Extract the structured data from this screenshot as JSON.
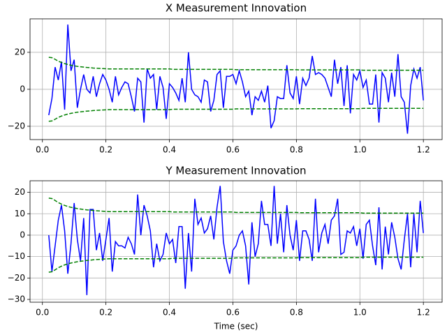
{
  "chart_data": [
    {
      "type": "line",
      "title": "X Measurement Innovation",
      "x": [
        0.02,
        0.03,
        0.04,
        0.05,
        0.06,
        0.07,
        0.08,
        0.09,
        0.1,
        0.11,
        0.12,
        0.13,
        0.14,
        0.15,
        0.16,
        0.17,
        0.18,
        0.19,
        0.2,
        0.21,
        0.22,
        0.23,
        0.24,
        0.25,
        0.26,
        0.27,
        0.28,
        0.29,
        0.3,
        0.31,
        0.32,
        0.33,
        0.34,
        0.35,
        0.36,
        0.37,
        0.38,
        0.39,
        0.4,
        0.41,
        0.42,
        0.43,
        0.44,
        0.45,
        0.46,
        0.47,
        0.48,
        0.49,
        0.5,
        0.51,
        0.52,
        0.53,
        0.54,
        0.55,
        0.56,
        0.57,
        0.58,
        0.59,
        0.6,
        0.61,
        0.62,
        0.63,
        0.64,
        0.65,
        0.66,
        0.67,
        0.68,
        0.69,
        0.7,
        0.71,
        0.72,
        0.73,
        0.74,
        0.75,
        0.76,
        0.77,
        0.78,
        0.79,
        0.8,
        0.81,
        0.82,
        0.83,
        0.84,
        0.85,
        0.86,
        0.87,
        0.88,
        0.89,
        0.9,
        0.91,
        0.92,
        0.93,
        0.94,
        0.95,
        0.96,
        0.97,
        0.98,
        0.99,
        1.0,
        1.01,
        1.02,
        1.03,
        1.04,
        1.05,
        1.06,
        1.07,
        1.08,
        1.09,
        1.1,
        1.11,
        1.12,
        1.13,
        1.14,
        1.15,
        1.16,
        1.17,
        1.18,
        1.19,
        1.2
      ],
      "series": [
        {
          "color": "#0000ff",
          "linestyle": "solid",
          "values": [
            -14,
            -5,
            12,
            5,
            15,
            -11,
            35,
            10,
            16,
            -10,
            0,
            8,
            0,
            -2,
            7,
            -4,
            3,
            8,
            5,
            0,
            -7,
            7,
            -3,
            1,
            4,
            3,
            -4,
            -12,
            6,
            4,
            -18,
            11,
            6,
            8,
            -11,
            7,
            1,
            -16,
            3,
            1,
            -2,
            -6,
            6,
            -7,
            20,
            0,
            -3,
            -4,
            -7,
            5,
            4,
            -12,
            -6,
            8,
            10,
            -10,
            7,
            7,
            8,
            3,
            10,
            4,
            -4,
            -1,
            -14,
            -4,
            -6,
            -1,
            -7,
            2,
            -21,
            -17,
            -4,
            -5,
            -5,
            13,
            -2,
            -5,
            7,
            -8,
            6,
            2,
            6,
            18,
            8,
            9,
            8,
            6,
            1,
            -4,
            16,
            3,
            12,
            -9,
            13,
            -13,
            8,
            5,
            10,
            1,
            5,
            -8,
            -8,
            8,
            -18,
            9,
            6,
            -7,
            9,
            -4,
            19,
            -4,
            -7,
            -24,
            2,
            11,
            6,
            12,
            -6
          ]
        },
        {
          "color": "#008000",
          "linestyle": "dashed",
          "values": [
            17.3,
            17.1,
            16.2,
            15.2,
            14.5,
            13.9,
            13.4,
            13.0,
            12.7,
            12.4,
            12.2,
            12.0,
            11.8,
            11.7,
            11.5,
            11.4,
            11.3,
            11.2,
            11.1,
            11.0,
            11.0,
            11.0,
            11.0,
            11.0,
            11.0,
            11.0,
            11.0,
            11.0,
            11.0,
            11.0,
            11.0,
            11.0,
            11.0,
            11.0,
            11.0,
            11.0,
            11.0,
            11.0,
            11.0,
            10.8,
            10.8,
            10.8,
            10.8,
            10.8,
            10.8,
            10.8,
            10.8,
            10.8,
            10.8,
            10.8,
            10.8,
            10.8,
            10.8,
            10.8,
            10.8,
            10.8,
            10.8,
            10.8,
            10.8,
            10.6,
            10.6,
            10.6,
            10.6,
            10.6,
            10.6,
            10.6,
            10.6,
            10.6,
            10.6,
            10.6,
            10.6,
            10.6,
            10.6,
            10.6,
            10.6,
            10.6,
            10.6,
            10.6,
            10.6,
            10.5,
            10.5,
            10.5,
            10.5,
            10.5,
            10.5,
            10.5,
            10.5,
            10.5,
            10.5,
            10.5,
            10.5,
            10.5,
            10.5,
            10.5,
            10.5,
            10.5,
            10.5,
            10.5,
            10.5,
            10.3,
            10.3,
            10.3,
            10.3,
            10.3,
            10.3,
            10.3,
            10.3,
            10.3,
            10.3,
            10.3,
            10.3,
            10.3,
            10.3,
            10.3,
            10.3,
            10.3,
            10.3,
            10.3,
            10.3
          ]
        },
        {
          "color": "#008000",
          "linestyle": "dashed",
          "values": [
            -17.3,
            -17.1,
            -16.2,
            -15.2,
            -14.5,
            -13.9,
            -13.4,
            -13.0,
            -12.7,
            -12.4,
            -12.2,
            -12.0,
            -11.8,
            -11.7,
            -11.5,
            -11.4,
            -11.3,
            -11.2,
            -11.1,
            -11.0,
            -11.0,
            -11.0,
            -11.0,
            -11.0,
            -11.0,
            -11.0,
            -11.0,
            -11.0,
            -11.0,
            -11.0,
            -11.0,
            -11.0,
            -11.0,
            -11.0,
            -11.0,
            -11.0,
            -11.0,
            -11.0,
            -11.0,
            -10.8,
            -10.8,
            -10.8,
            -10.8,
            -10.8,
            -10.8,
            -10.8,
            -10.8,
            -10.8,
            -10.8,
            -10.8,
            -10.8,
            -10.8,
            -10.8,
            -10.8,
            -10.8,
            -10.8,
            -10.8,
            -10.8,
            -10.8,
            -10.6,
            -10.6,
            -10.6,
            -10.6,
            -10.6,
            -10.6,
            -10.6,
            -10.6,
            -10.6,
            -10.6,
            -10.6,
            -10.6,
            -10.6,
            -10.6,
            -10.6,
            -10.6,
            -10.6,
            -10.6,
            -10.6,
            -10.6,
            -10.5,
            -10.5,
            -10.5,
            -10.5,
            -10.5,
            -10.5,
            -10.5,
            -10.5,
            -10.5,
            -10.5,
            -10.5,
            -10.5,
            -10.5,
            -10.5,
            -10.5,
            -10.5,
            -10.5,
            -10.5,
            -10.5,
            -10.5,
            -10.3,
            -10.3,
            -10.3,
            -10.3,
            -10.3,
            -10.3,
            -10.3,
            -10.3,
            -10.3,
            -10.3,
            -10.3,
            -10.3,
            -10.3,
            -10.3,
            -10.3,
            -10.3,
            -10.3,
            -10.3,
            -10.3,
            -10.3
          ]
        }
      ],
      "xlim": [
        -0.039,
        1.259
      ],
      "xticks": [
        {
          "value": 0,
          "label": "0.0"
        },
        0.2,
        0.4,
        0.6,
        0.8,
        {
          "value": 1,
          "label": "1.0"
        },
        1.2
      ],
      "ylim": [
        -27.2,
        38.1
      ],
      "yticks": [
        {
          "value": -20,
          "label": "−20"
        },
        0,
        20
      ],
      "grid": true
    },
    {
      "type": "line",
      "title": "Y Measurement Innovation",
      "xlabel": "Time (sec)",
      "x": [
        0.02,
        0.03,
        0.04,
        0.05,
        0.06,
        0.07,
        0.08,
        0.09,
        0.1,
        0.11,
        0.12,
        0.13,
        0.14,
        0.15,
        0.16,
        0.17,
        0.18,
        0.19,
        0.2,
        0.21,
        0.22,
        0.23,
        0.24,
        0.25,
        0.26,
        0.27,
        0.28,
        0.29,
        0.3,
        0.31,
        0.32,
        0.33,
        0.34,
        0.35,
        0.36,
        0.37,
        0.38,
        0.39,
        0.4,
        0.41,
        0.42,
        0.43,
        0.44,
        0.45,
        0.46,
        0.47,
        0.48,
        0.49,
        0.5,
        0.51,
        0.52,
        0.53,
        0.54,
        0.55,
        0.56,
        0.57,
        0.58,
        0.59,
        0.6,
        0.61,
        0.62,
        0.63,
        0.64,
        0.65,
        0.66,
        0.67,
        0.68,
        0.69,
        0.7,
        0.71,
        0.72,
        0.73,
        0.74,
        0.75,
        0.76,
        0.77,
        0.78,
        0.79,
        0.8,
        0.81,
        0.82,
        0.83,
        0.84,
        0.85,
        0.86,
        0.87,
        0.88,
        0.89,
        0.9,
        0.91,
        0.92,
        0.93,
        0.94,
        0.95,
        0.96,
        0.97,
        0.98,
        0.99,
        1.0,
        1.01,
        1.02,
        1.03,
        1.04,
        1.05,
        1.06,
        1.07,
        1.08,
        1.09,
        1.1,
        1.11,
        1.12,
        1.13,
        1.14,
        1.15,
        1.16,
        1.17,
        1.18,
        1.19,
        1.2
      ],
      "series": [
        {
          "color": "#0000ff",
          "linestyle": "solid",
          "values": [
            0,
            -17,
            -5,
            7,
            14,
            2,
            -18,
            -4,
            15,
            -2,
            -12,
            8,
            -28,
            12,
            12,
            -7,
            1,
            -12,
            -2,
            8,
            -17,
            -3,
            -5,
            -5,
            -6,
            -1,
            -4,
            -9,
            19,
            0,
            14,
            9,
            2,
            -15,
            -4,
            -12,
            -9,
            1,
            -4,
            -2,
            -13,
            4,
            4,
            -25,
            1,
            -17,
            17,
            5,
            8,
            1,
            3,
            9,
            -2,
            13,
            23,
            -3,
            -12,
            -18,
            -7,
            -5,
            0,
            2,
            -5,
            -23,
            6,
            -10,
            -4,
            16,
            5,
            5,
            -5,
            23,
            -4,
            10,
            -8,
            14,
            0,
            -7,
            7,
            -12,
            2,
            2,
            -2,
            -12,
            17,
            -8,
            1,
            5,
            -4,
            7,
            9,
            17,
            -9,
            -8,
            2,
            1,
            4,
            -5,
            3,
            -11,
            5,
            7,
            -5,
            -14,
            13,
            -16,
            4,
            -9,
            6,
            -1,
            -11,
            -16,
            -2,
            10,
            -15,
            10,
            -8,
            16,
            1
          ]
        },
        {
          "color": "#008000",
          "linestyle": "dashed",
          "values": [
            17.3,
            17.1,
            16.2,
            15.2,
            14.5,
            13.9,
            13.4,
            13.0,
            12.7,
            12.4,
            12.2,
            12.0,
            11.8,
            11.7,
            11.5,
            11.4,
            11.3,
            11.2,
            11.1,
            11.0,
            11.0,
            11.0,
            11.0,
            11.0,
            11.0,
            11.0,
            11.0,
            11.0,
            11.0,
            11.0,
            11.0,
            11.0,
            11.0,
            11.0,
            11.0,
            11.0,
            11.0,
            11.0,
            11.0,
            10.8,
            10.8,
            10.8,
            10.8,
            10.8,
            10.8,
            10.8,
            10.8,
            10.8,
            10.8,
            10.8,
            10.8,
            10.8,
            10.8,
            10.8,
            10.8,
            10.8,
            10.8,
            10.8,
            10.8,
            10.6,
            10.6,
            10.6,
            10.6,
            10.6,
            10.6,
            10.6,
            10.6,
            10.6,
            10.6,
            10.6,
            10.6,
            10.6,
            10.6,
            10.6,
            10.6,
            10.6,
            10.6,
            10.6,
            10.6,
            10.5,
            10.5,
            10.5,
            10.5,
            10.5,
            10.5,
            10.5,
            10.5,
            10.5,
            10.5,
            10.5,
            10.5,
            10.5,
            10.5,
            10.5,
            10.5,
            10.5,
            10.5,
            10.5,
            10.5,
            10.3,
            10.3,
            10.3,
            10.3,
            10.3,
            10.3,
            10.3,
            10.3,
            10.3,
            10.3,
            10.3,
            10.3,
            10.3,
            10.3,
            10.3,
            10.3,
            10.3,
            10.3,
            10.3,
            10.3
          ]
        },
        {
          "color": "#008000",
          "linestyle": "dashed",
          "values": [
            -17.3,
            -17.1,
            -16.2,
            -15.2,
            -14.5,
            -13.9,
            -13.4,
            -13.0,
            -12.7,
            -12.4,
            -12.2,
            -12.0,
            -11.8,
            -11.7,
            -11.5,
            -11.4,
            -11.3,
            -11.2,
            -11.1,
            -11.0,
            -11.0,
            -11.0,
            -11.0,
            -11.0,
            -11.0,
            -11.0,
            -11.0,
            -11.0,
            -11.0,
            -11.0,
            -11.0,
            -11.0,
            -11.0,
            -11.0,
            -11.0,
            -11.0,
            -11.0,
            -11.0,
            -11.0,
            -10.8,
            -10.8,
            -10.8,
            -10.8,
            -10.8,
            -10.8,
            -10.8,
            -10.8,
            -10.8,
            -10.8,
            -10.8,
            -10.8,
            -10.8,
            -10.8,
            -10.8,
            -10.8,
            -10.8,
            -10.8,
            -10.8,
            -10.8,
            -10.6,
            -10.6,
            -10.6,
            -10.6,
            -10.6,
            -10.6,
            -10.6,
            -10.6,
            -10.6,
            -10.6,
            -10.6,
            -10.6,
            -10.6,
            -10.6,
            -10.6,
            -10.6,
            -10.6,
            -10.6,
            -10.6,
            -10.6,
            -10.5,
            -10.5,
            -10.5,
            -10.5,
            -10.5,
            -10.5,
            -10.5,
            -10.5,
            -10.5,
            -10.5,
            -10.5,
            -10.5,
            -10.5,
            -10.5,
            -10.5,
            -10.5,
            -10.5,
            -10.5,
            -10.5,
            -10.5,
            -10.3,
            -10.3,
            -10.3,
            -10.3,
            -10.3,
            -10.3,
            -10.3,
            -10.3,
            -10.3,
            -10.3,
            -10.3,
            -10.3,
            -10.3,
            -10.3,
            -10.3,
            -10.3,
            -10.3,
            -10.3,
            -10.3,
            -10.3
          ]
        }
      ],
      "xlim": [
        -0.039,
        1.259
      ],
      "xticks": [
        {
          "value": 0,
          "label": "0.0"
        },
        0.2,
        0.4,
        0.6,
        0.8,
        {
          "value": 1,
          "label": "1.0"
        },
        1.2
      ],
      "ylim": [
        -31.3,
        25.4
      ],
      "yticks": [
        {
          "value": -30,
          "label": "−30"
        },
        {
          "value": -20,
          "label": "−20"
        },
        {
          "value": -10,
          "label": "−10"
        },
        0,
        10,
        20
      ],
      "grid": true
    }
  ]
}
